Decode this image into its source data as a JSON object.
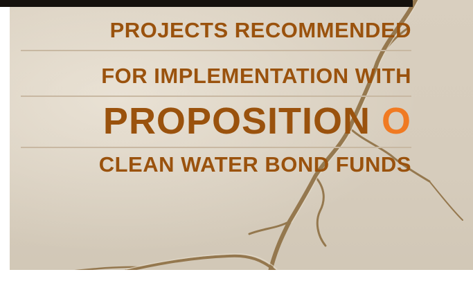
{
  "cover": {
    "line1": "PROJECTS RECOMMENDED",
    "line2": "FOR IMPLEMENTATION WITH",
    "line3_main": "PROPOSITION",
    "line3_letter": "O",
    "line4": "CLEAN WATER BOND FUNDS"
  },
  "colors": {
    "title_brown": "#9a520d",
    "accent_orange": "#f07a22",
    "paper": "#d6ccbc",
    "fissure": "#8a6a3c"
  }
}
